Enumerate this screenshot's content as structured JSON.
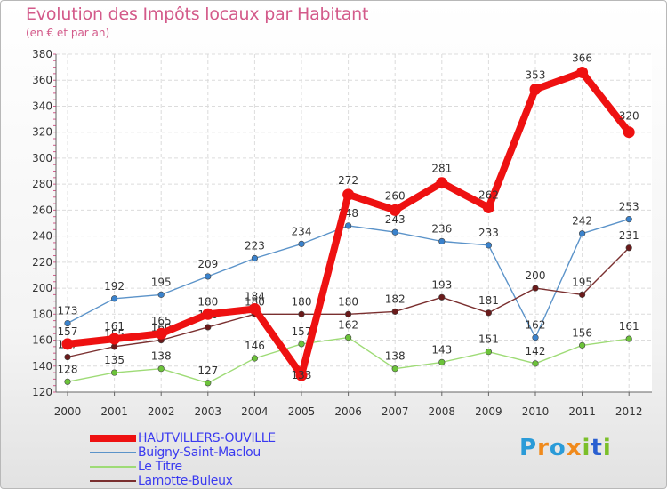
{
  "title": "Evolution des Impôts locaux par Habitant",
  "subtitle": "(en € et par an)",
  "logo_text": "Proxiti",
  "chart_data": {
    "type": "line",
    "title": "Evolution des Impôts locaux par Habitant",
    "subtitle": "(en € et par an)",
    "xlabel": "",
    "ylabel": "",
    "ylim": [
      120,
      380
    ],
    "yticks": [
      120,
      140,
      160,
      180,
      200,
      220,
      240,
      260,
      280,
      300,
      320,
      340,
      360,
      380
    ],
    "grid": true,
    "legend_position": "bottom-left",
    "x": [
      "2000",
      "2001",
      "2002",
      "2003",
      "2004",
      "2005",
      "2006",
      "2007",
      "2008",
      "2009",
      "2010",
      "2011",
      "2012"
    ],
    "series": [
      {
        "name": "HAUTVILLERS-OUVILLE",
        "color": "#ee1111",
        "bold": true,
        "values": [
          157,
          161,
          165,
          180,
          184,
          133,
          272,
          260,
          281,
          262,
          353,
          366,
          320
        ],
        "labels": [
          "157",
          "161",
          "165",
          "180",
          "184",
          "133",
          "272",
          "260",
          "281",
          "262",
          "353",
          "366",
          "320"
        ]
      },
      {
        "name": "Buigny-Saint-Maclou",
        "color": "#5b93c9",
        "marker": "#3a82cc",
        "bold": false,
        "values": [
          173,
          192,
          195,
          209,
          223,
          234,
          248,
          243,
          236,
          233,
          162,
          242,
          253
        ],
        "labels": [
          "173",
          "192",
          "195",
          "209",
          "223",
          "234",
          "248",
          "243",
          "236",
          "233",
          "162",
          "242",
          "253"
        ]
      },
      {
        "name": "Le Titre",
        "color": "#9edb76",
        "marker": "#6cc33a",
        "bold": false,
        "values": [
          128,
          135,
          138,
          127,
          146,
          157,
          162,
          138,
          143,
          151,
          142,
          156,
          161
        ],
        "labels": [
          "128",
          "135",
          "138",
          "127",
          "146",
          "157",
          "162",
          "138",
          "143",
          "151",
          "142",
          "156",
          "161"
        ]
      },
      {
        "name": "Lamotte-Buleux",
        "color": "#7a2f2f",
        "marker": "#6a1a1a",
        "bold": false,
        "values": [
          147,
          155,
          160,
          170,
          180,
          180,
          180,
          182,
          193,
          181,
          200,
          195,
          231
        ],
        "labels": [
          "147",
          "155",
          "160",
          "170",
          "180",
          "180",
          "180",
          "182",
          "193",
          "181",
          "200",
          "195",
          "231"
        ]
      }
    ]
  }
}
